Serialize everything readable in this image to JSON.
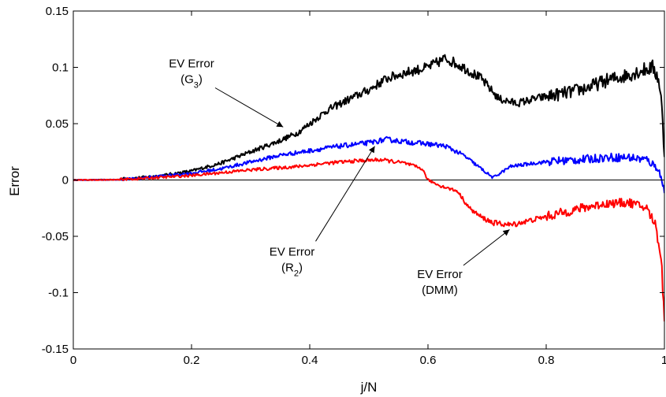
{
  "chart_data": {
    "type": "line",
    "xlabel": "j/N",
    "ylabel": "Error",
    "xlim": [
      0,
      1
    ],
    "ylim": [
      -0.15,
      0.15
    ],
    "xticks": [
      {
        "value": 0,
        "label": "0"
      },
      {
        "value": 0.2,
        "label": "0.2"
      },
      {
        "value": 0.4,
        "label": "0.4"
      },
      {
        "value": 0.6,
        "label": "0.6"
      },
      {
        "value": 0.8,
        "label": "0.8"
      },
      {
        "value": 1,
        "label": "1"
      }
    ],
    "yticks": [
      {
        "value": -0.15,
        "label": "-0.15"
      },
      {
        "value": -0.1,
        "label": "-0.1"
      },
      {
        "value": -0.05,
        "label": "-0.05"
      },
      {
        "value": 0,
        "label": "0"
      },
      {
        "value": 0.05,
        "label": "0.05"
      },
      {
        "value": 0.1,
        "label": "0.1"
      },
      {
        "value": 0.15,
        "label": "0.15"
      }
    ],
    "grid": false,
    "zero_line": true,
    "series": [
      {
        "color": "#000000",
        "points": [
          [
            0,
            0
          ],
          [
            0.05,
            0.0005
          ],
          [
            0.1,
            0.0015
          ],
          [
            0.15,
            0.004
          ],
          [
            0.2,
            0.008
          ],
          [
            0.25,
            0.015
          ],
          [
            0.3,
            0.025
          ],
          [
            0.35,
            0.035
          ],
          [
            0.38,
            0.042
          ],
          [
            0.4,
            0.05
          ],
          [
            0.43,
            0.062
          ],
          [
            0.46,
            0.07
          ],
          [
            0.5,
            0.08
          ],
          [
            0.53,
            0.09
          ],
          [
            0.56,
            0.095
          ],
          [
            0.6,
            0.1
          ],
          [
            0.63,
            0.108
          ],
          [
            0.66,
            0.1
          ],
          [
            0.69,
            0.09
          ],
          [
            0.72,
            0.072
          ],
          [
            0.75,
            0.068
          ],
          [
            0.78,
            0.072
          ],
          [
            0.81,
            0.075
          ],
          [
            0.84,
            0.078
          ],
          [
            0.87,
            0.082
          ],
          [
            0.9,
            0.088
          ],
          [
            0.93,
            0.092
          ],
          [
            0.96,
            0.097
          ],
          [
            0.98,
            0.1
          ],
          [
            0.99,
            0.09
          ],
          [
            0.995,
            0.07
          ],
          [
            1,
            0.02
          ]
        ]
      },
      {
        "color": "#0000ff",
        "points": [
          [
            0,
            0
          ],
          [
            0.1,
            0.001
          ],
          [
            0.2,
            0.006
          ],
          [
            0.25,
            0.01
          ],
          [
            0.3,
            0.016
          ],
          [
            0.35,
            0.022
          ],
          [
            0.4,
            0.026
          ],
          [
            0.45,
            0.03
          ],
          [
            0.5,
            0.033
          ],
          [
            0.53,
            0.036
          ],
          [
            0.56,
            0.034
          ],
          [
            0.6,
            0.032
          ],
          [
            0.63,
            0.03
          ],
          [
            0.66,
            0.022
          ],
          [
            0.69,
            0.01
          ],
          [
            0.71,
            0.002
          ],
          [
            0.74,
            0.012
          ],
          [
            0.78,
            0.015
          ],
          [
            0.82,
            0.017
          ],
          [
            0.86,
            0.018
          ],
          [
            0.9,
            0.02
          ],
          [
            0.94,
            0.02
          ],
          [
            0.97,
            0.018
          ],
          [
            0.99,
            0.01
          ],
          [
            1,
            -0.01
          ]
        ]
      },
      {
        "color": "#ff0000",
        "points": [
          [
            0,
            0
          ],
          [
            0.1,
            0.0008
          ],
          [
            0.2,
            0.004
          ],
          [
            0.3,
            0.009
          ],
          [
            0.38,
            0.012
          ],
          [
            0.43,
            0.015
          ],
          [
            0.48,
            0.017
          ],
          [
            0.52,
            0.018
          ],
          [
            0.56,
            0.015
          ],
          [
            0.59,
            0.01
          ],
          [
            0.6,
            0
          ],
          [
            0.62,
            -0.005
          ],
          [
            0.65,
            -0.01
          ],
          [
            0.67,
            -0.025
          ],
          [
            0.69,
            -0.033
          ],
          [
            0.71,
            -0.038
          ],
          [
            0.74,
            -0.04
          ],
          [
            0.78,
            -0.035
          ],
          [
            0.82,
            -0.03
          ],
          [
            0.86,
            -0.025
          ],
          [
            0.9,
            -0.021
          ],
          [
            0.94,
            -0.02
          ],
          [
            0.97,
            -0.025
          ],
          [
            0.985,
            -0.04
          ],
          [
            0.995,
            -0.07
          ],
          [
            1,
            -0.13
          ]
        ]
      }
    ],
    "annotations": [
      {
        "lines": [
          "EV Error",
          "(G",
          "3",
          ")"
        ],
        "text_x": 0.2,
        "text_y": 0.1,
        "arrow_to": [
          0.355,
          0.047
        ]
      },
      {
        "lines": [
          "EV Error",
          "(R",
          "2",
          ")"
        ],
        "text_x": 0.37,
        "text_y": -0.067,
        "arrow_to": [
          0.51,
          0.03
        ]
      },
      {
        "lines": [
          "EV Error",
          "(DMM)"
        ],
        "text_x": 0.62,
        "text_y": -0.087,
        "arrow_to": [
          0.738,
          -0.044
        ]
      }
    ]
  }
}
